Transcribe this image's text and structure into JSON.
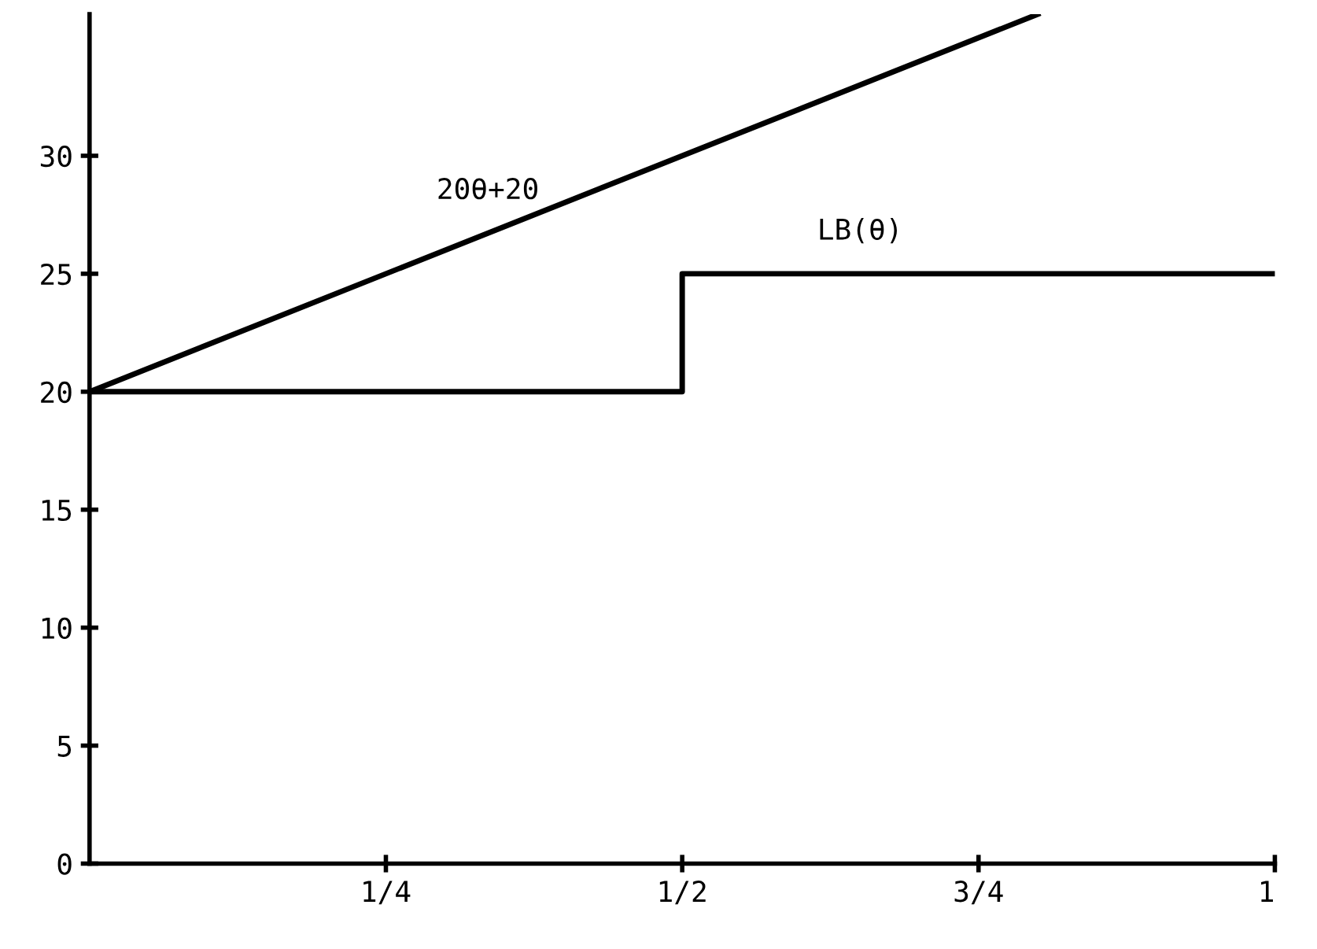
{
  "chart_data": {
    "type": "line",
    "series": [
      {
        "name": "20θ+20",
        "color": "#000000",
        "x": [
          0,
          0.8
        ],
        "values": [
          20,
          36
        ]
      },
      {
        "name": "LB(θ)",
        "color": "#000000",
        "type": "step",
        "x": [
          0,
          0.5,
          1
        ],
        "values": [
          20,
          25,
          25
        ]
      }
    ],
    "xlim": [
      0,
      1
    ],
    "ylim": [
      0,
      36
    ],
    "xticks": [
      {
        "value": 0.25,
        "label": "1/4"
      },
      {
        "value": 0.5,
        "label": "1/2"
      },
      {
        "value": 0.75,
        "label": "3/4"
      },
      {
        "value": 1,
        "label": "1"
      }
    ],
    "yticks": [
      0,
      5,
      10,
      15,
      20,
      25,
      30
    ],
    "grid": false,
    "legend": false
  }
}
